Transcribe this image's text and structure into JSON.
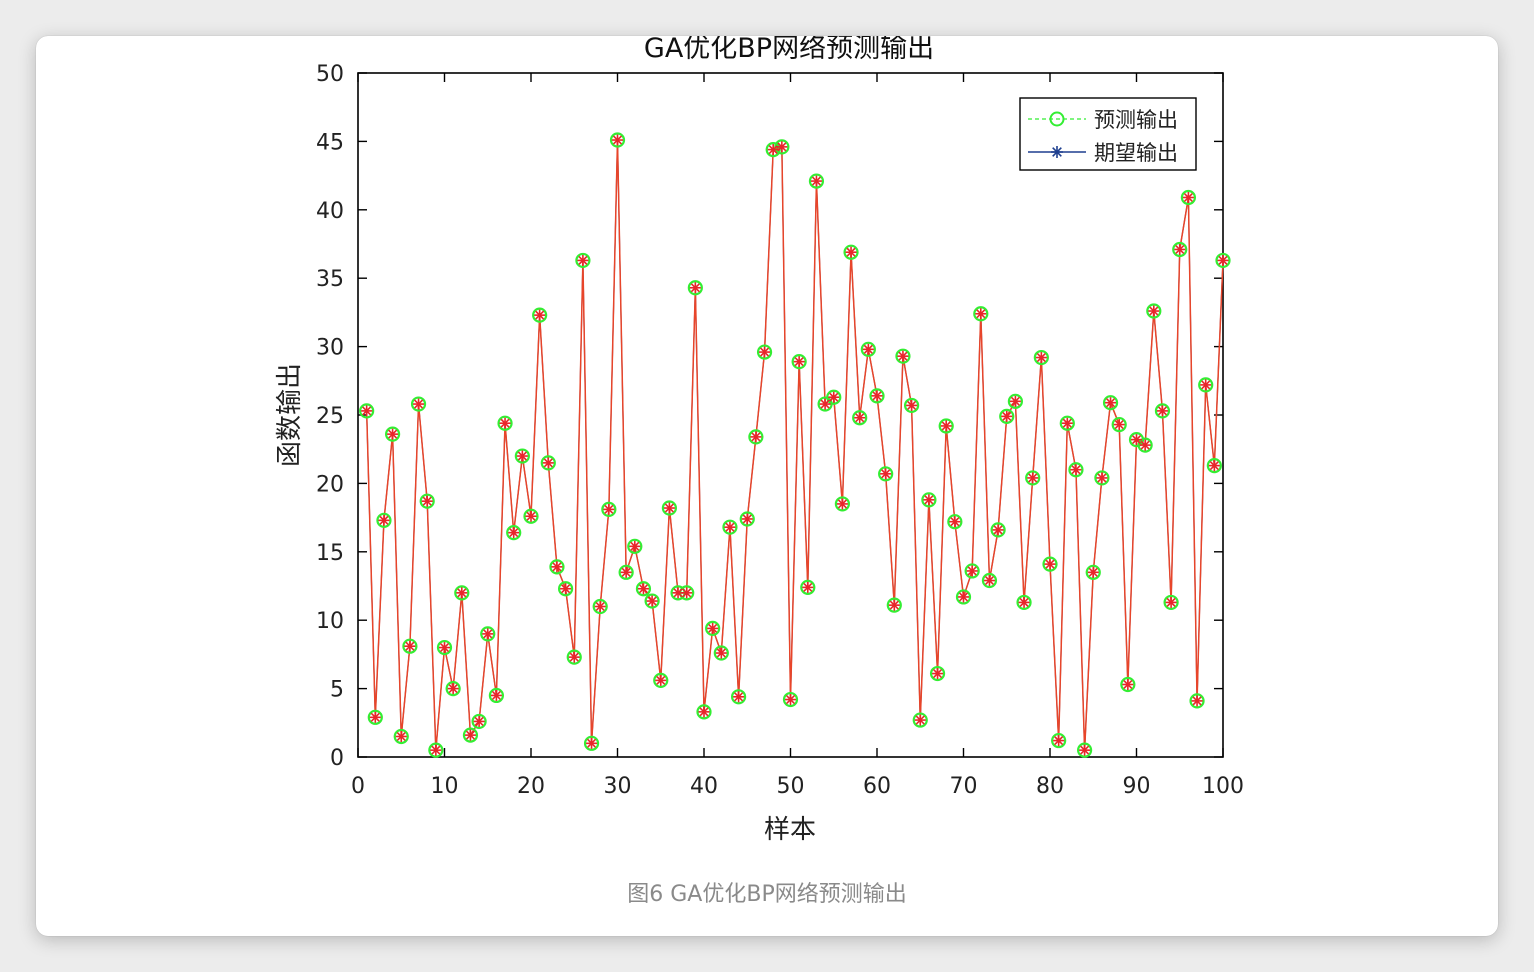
{
  "caption": "图6 GA优化BP网络预测输出",
  "colors": {
    "predicted_marker": "#33ee33",
    "expected_marker": "#1f3f8f",
    "line": "#e8452a",
    "star": "#e8262a",
    "axes": "#000000",
    "window_bg": "#ffffff",
    "page_bg": "#ececec",
    "caption": "#8a8a8a"
  },
  "chart_data": {
    "type": "line",
    "title": "GA优化BP网络预测输出",
    "xlabel": "样本",
    "ylabel": "函数输出",
    "xlim": [
      0,
      100
    ],
    "ylim": [
      0,
      50
    ],
    "xticks": [
      0,
      10,
      20,
      30,
      40,
      50,
      60,
      70,
      80,
      90,
      100
    ],
    "yticks": [
      0,
      5,
      10,
      15,
      20,
      25,
      30,
      35,
      40,
      45,
      50
    ],
    "grid": false,
    "legend_position": "top-right",
    "x": [
      1,
      2,
      3,
      4,
      5,
      6,
      7,
      8,
      9,
      10,
      11,
      12,
      13,
      14,
      15,
      16,
      17,
      18,
      19,
      20,
      21,
      22,
      23,
      24,
      25,
      26,
      27,
      28,
      29,
      30,
      31,
      32,
      33,
      34,
      35,
      36,
      37,
      38,
      39,
      40,
      41,
      42,
      43,
      44,
      45,
      46,
      47,
      48,
      49,
      50,
      51,
      52,
      53,
      54,
      55,
      56,
      57,
      58,
      59,
      60,
      61,
      62,
      63,
      64,
      65,
      66,
      67,
      68,
      69,
      70,
      71,
      72,
      73,
      74,
      75,
      76,
      77,
      78,
      79,
      80,
      81,
      82,
      83,
      84,
      85,
      86,
      87,
      88,
      89,
      90,
      91,
      92,
      93,
      94,
      95,
      96,
      97,
      98,
      99,
      100
    ],
    "series": [
      {
        "name": "预测输出",
        "marker": "circle",
        "line_style": "dashed",
        "values": [
          25.3,
          2.9,
          17.3,
          23.6,
          1.5,
          8.1,
          25.8,
          18.7,
          0.5,
          8.0,
          5.0,
          12.0,
          1.6,
          2.6,
          9.0,
          4.5,
          24.4,
          16.4,
          22.0,
          17.6,
          32.3,
          21.5,
          13.9,
          12.3,
          7.3,
          36.3,
          1.0,
          11.0,
          18.1,
          45.1,
          13.5,
          15.4,
          12.3,
          11.4,
          5.6,
          18.2,
          12.0,
          12.0,
          34.3,
          3.3,
          9.4,
          7.6,
          16.8,
          4.4,
          17.4,
          23.4,
          29.6,
          44.4,
          44.6,
          4.2,
          28.9,
          12.4,
          42.1,
          25.8,
          26.3,
          18.5,
          36.9,
          24.8,
          29.8,
          26.4,
          20.7,
          11.1,
          29.3,
          25.7,
          2.7,
          18.8,
          6.1,
          24.2,
          17.2,
          11.7,
          13.6,
          32.4,
          12.9,
          16.6,
          24.9,
          26.0,
          11.3,
          20.4,
          29.2,
          14.1,
          1.2,
          24.4,
          21.0,
          0.5,
          13.5,
          20.4,
          25.9,
          24.3,
          5.3,
          23.2,
          22.8,
          32.6,
          25.3,
          11.3,
          37.1,
          40.9,
          4.1,
          27.2,
          21.3,
          36.3
        ]
      },
      {
        "name": "期望输出",
        "marker": "star",
        "line_style": "solid",
        "values": [
          25.3,
          2.9,
          17.3,
          23.6,
          1.5,
          8.1,
          25.8,
          18.7,
          0.5,
          8.0,
          5.0,
          12.0,
          1.6,
          2.6,
          9.0,
          4.5,
          24.4,
          16.4,
          22.0,
          17.6,
          32.3,
          21.5,
          13.9,
          12.3,
          7.3,
          36.3,
          1.0,
          11.0,
          18.1,
          45.1,
          13.5,
          15.4,
          12.3,
          11.4,
          5.6,
          18.2,
          12.0,
          12.0,
          34.3,
          3.3,
          9.4,
          7.6,
          16.8,
          4.4,
          17.4,
          23.4,
          29.6,
          44.4,
          44.6,
          4.2,
          28.9,
          12.4,
          42.1,
          25.8,
          26.3,
          18.5,
          36.9,
          24.8,
          29.8,
          26.4,
          20.7,
          11.1,
          29.3,
          25.7,
          2.7,
          18.8,
          6.1,
          24.2,
          17.2,
          11.7,
          13.6,
          32.4,
          12.9,
          16.6,
          24.9,
          26.0,
          11.3,
          20.4,
          29.2,
          14.1,
          1.2,
          24.4,
          21.0,
          0.5,
          13.5,
          20.4,
          25.9,
          24.3,
          5.3,
          23.2,
          22.8,
          32.6,
          25.3,
          11.3,
          37.1,
          40.9,
          4.1,
          27.2,
          21.3,
          36.3
        ]
      }
    ]
  }
}
